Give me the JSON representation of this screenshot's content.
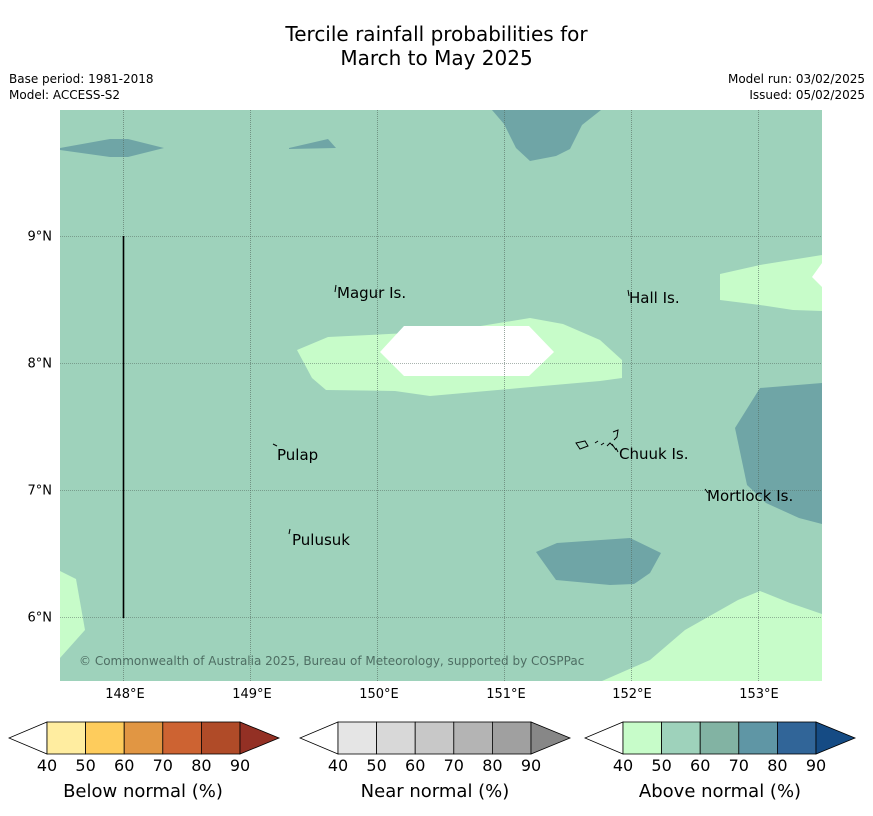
{
  "title_line1": "Tercile rainfall probabilities for",
  "title_line2": "March to May 2025",
  "meta": {
    "base_period": "Base period: 1981-2018",
    "model": "Model: ACCESS-S2",
    "model_run": "Model run: 03/02/2025",
    "issued": "Issued: 05/02/2025"
  },
  "axes": {
    "x_ticks": [
      "148°E",
      "149°E",
      "150°E",
      "151°E",
      "152°E",
      "153°E"
    ],
    "y_ticks": [
      "9°N",
      "8°N",
      "7°N",
      "6°N"
    ]
  },
  "places": {
    "magur": "Magur Is.",
    "hall": "Hall Is.",
    "pulap": "Pulap",
    "chuuk": "Chuuk Is.",
    "mortlock": "Mortlock Is.",
    "pulusuk": "Pulusuk"
  },
  "copyright": "© Commonwealth of Australia 2025, Bureau of Meteorology, supported by COSPPac",
  "colorbars": [
    {
      "label": "Below normal (%)",
      "ticks": [
        "40",
        "50",
        "60",
        "70",
        "80",
        "90"
      ],
      "colors": [
        "#ffffff",
        "#ffeda0",
        "#fecc5c",
        "#e19643",
        "#cd6332",
        "#b04b28",
        "#933024"
      ]
    },
    {
      "label": "Near normal (%)",
      "ticks": [
        "40",
        "50",
        "60",
        "70",
        "80",
        "90"
      ],
      "colors": [
        "#ffffff",
        "#e5e5e5",
        "#d8d8d8",
        "#c8c8c8",
        "#b4b4b4",
        "#a0a0a0",
        "#878787"
      ]
    },
    {
      "label": "Above normal (%)",
      "ticks": [
        "40",
        "50",
        "60",
        "70",
        "80",
        "90"
      ],
      "colors": [
        "#ffffff",
        "#c7fcc9",
        "#9ed2bb",
        "#82b3a3",
        "#5f96a5",
        "#316598",
        "#154b84"
      ]
    }
  ],
  "map_colors": {
    "background": "#9ed2bb",
    "light": "#c7fcc9",
    "dark": "#6fa5a6",
    "white": "#ffffff"
  }
}
